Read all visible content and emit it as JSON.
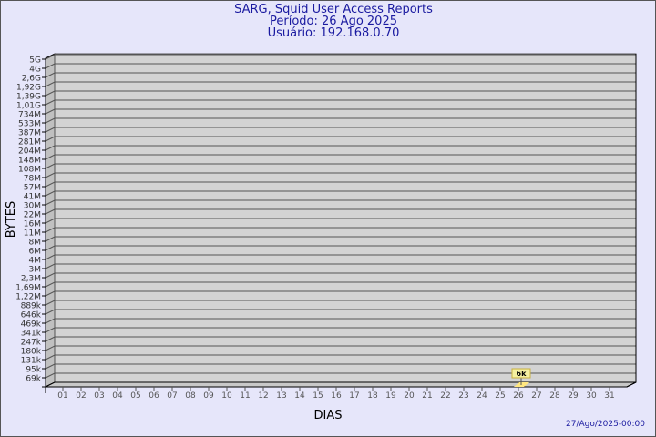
{
  "chart_data": {
    "type": "bar",
    "title": "SARG, Squid User Access Reports",
    "subtitle_period": "Período: 26 Ago 2025",
    "subtitle_user": "Usuário: 192.168.0.70",
    "xlabel": "DIAS",
    "ylabel": "BYTES",
    "y_scale": "log",
    "y_tick_labels": [
      "5G",
      "4G",
      "2,6G",
      "1,92G",
      "1,39G",
      "1,01G",
      "734M",
      "533M",
      "387M",
      "281M",
      "204M",
      "148M",
      "108M",
      "78M",
      "57M",
      "41M",
      "30M",
      "22M",
      "16M",
      "11M",
      "8M",
      "6M",
      "4M",
      "3M",
      "2,3M",
      "1,69M",
      "1,22M",
      "889k",
      "646k",
      "469k",
      "341k",
      "247k",
      "180k",
      "131k",
      "95k",
      "69k"
    ],
    "categories": [
      "01",
      "02",
      "03",
      "04",
      "05",
      "06",
      "07",
      "08",
      "09",
      "10",
      "11",
      "12",
      "13",
      "14",
      "15",
      "16",
      "17",
      "18",
      "19",
      "20",
      "21",
      "22",
      "23",
      "24",
      "25",
      "26",
      "27",
      "28",
      "29",
      "30",
      "31"
    ],
    "values": [
      null,
      null,
      null,
      null,
      null,
      null,
      null,
      null,
      null,
      null,
      null,
      null,
      null,
      null,
      null,
      null,
      null,
      null,
      null,
      null,
      null,
      null,
      null,
      null,
      null,
      6000,
      null,
      null,
      null,
      null,
      null
    ],
    "data_labels": {
      "26": "6k"
    },
    "grid": true,
    "colors": {
      "wall": "#d3d3d3",
      "side": "#c0c0c0",
      "bar": "#ffe680",
      "label_bg": "#f5f0a0",
      "title": "#1a1aa0"
    }
  },
  "footer": {
    "timestamp": "27/Ago/2025-00:00"
  }
}
